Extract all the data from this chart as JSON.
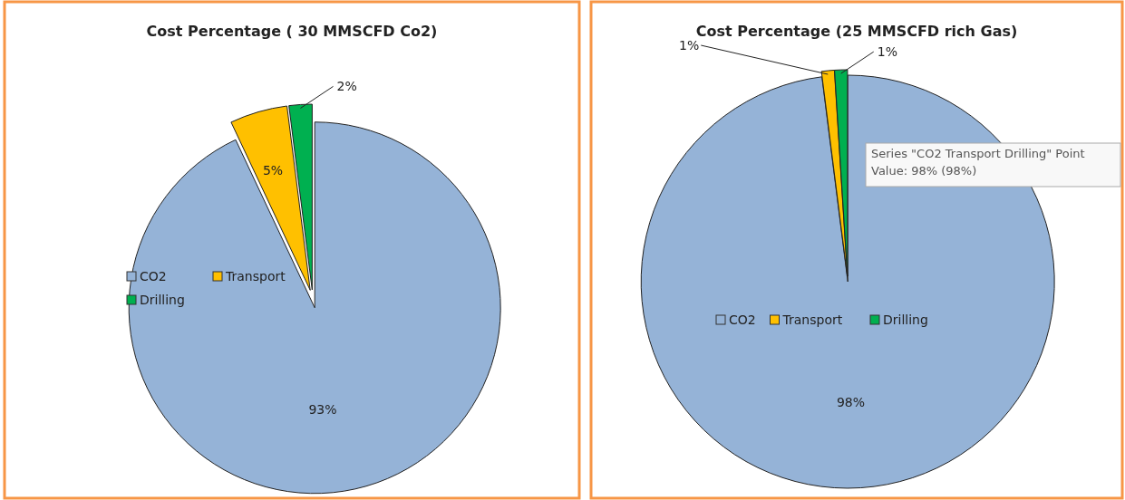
{
  "chart_data": [
    {
      "type": "pie",
      "title": "Cost Percentage ( 30 MMSCFD Co2)",
      "categories": [
        "CO2",
        "Transport",
        "Drilling"
      ],
      "values": [
        93,
        5,
        2
      ],
      "value_labels": [
        "93%",
        "5%",
        "2%"
      ],
      "colors": [
        "#95b3d7",
        "#ffc000",
        "#00b050"
      ],
      "legend": "left"
    },
    {
      "type": "pie",
      "title": "Cost Percentage (25 MMSCFD rich Gas)",
      "categories": [
        "CO2",
        "Transport",
        "Drilling"
      ],
      "values": [
        98,
        1,
        1
      ],
      "value_labels": [
        "98%",
        "1%",
        "1%"
      ],
      "colors": [
        "#95b3d7",
        "#ffc000",
        "#00b050"
      ],
      "legend": "bottom",
      "annotations": [
        "Series \"CO2 Transport Drilling\" Point",
        "Value: 98% (98%)"
      ]
    }
  ]
}
